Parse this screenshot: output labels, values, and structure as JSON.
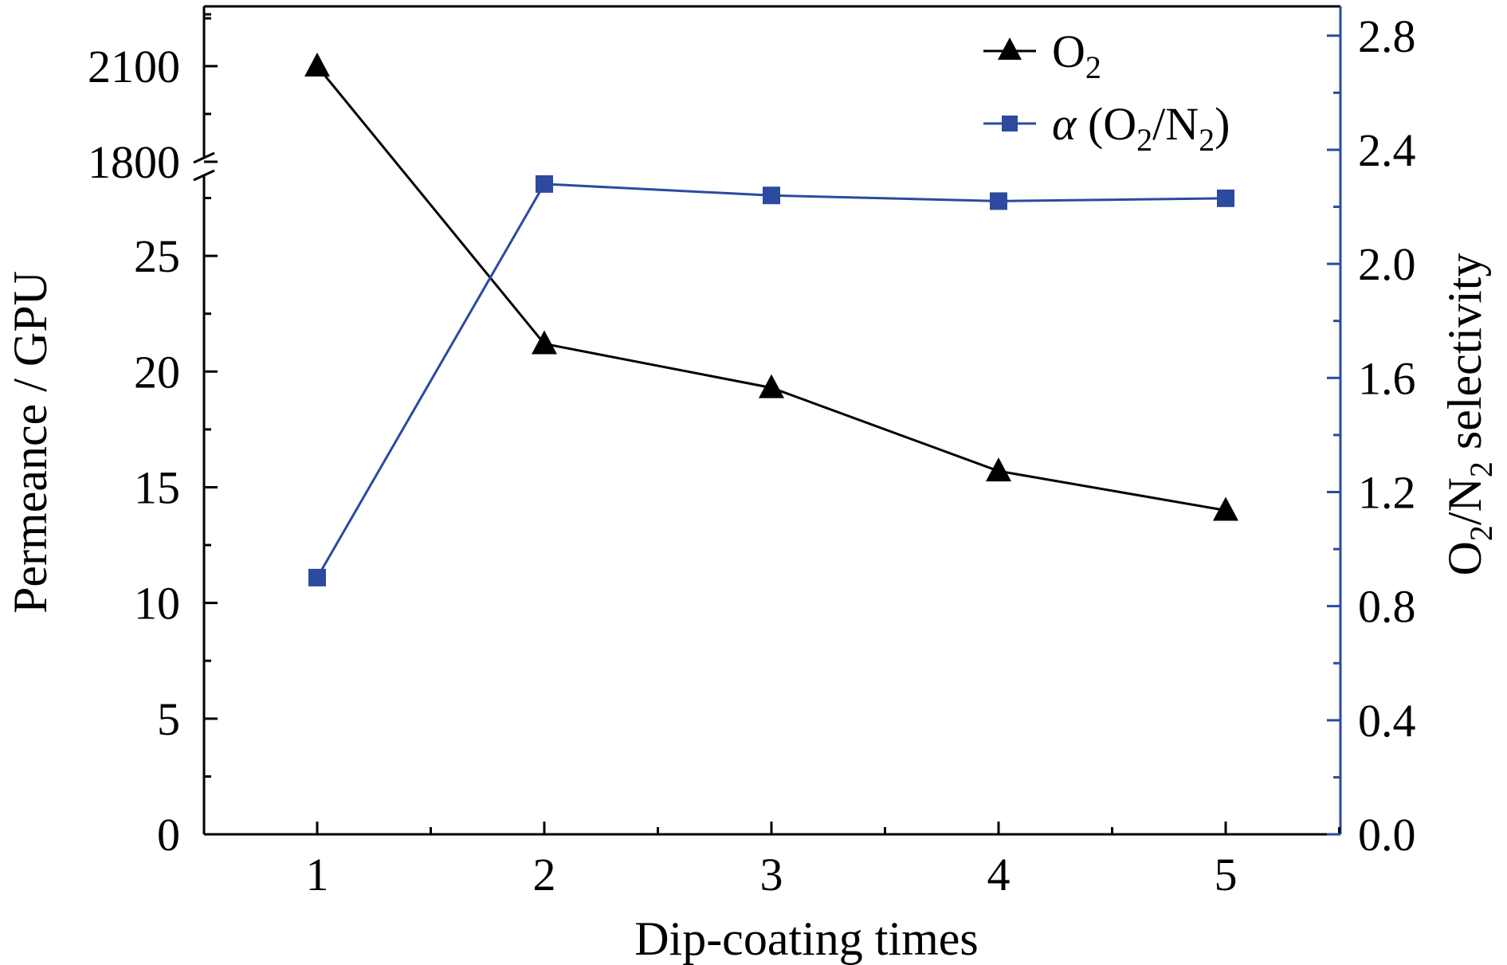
{
  "chart_data": {
    "type": "line",
    "xlabel": "Dip-coating times",
    "ylabel_left": "Permeance / GPU",
    "ylabel_right": "O2/N2 selectivity",
    "x_ticks": [
      "1",
      "2",
      "3",
      "4",
      "5"
    ],
    "y_left_ticks_lower": [
      "0",
      "5",
      "10",
      "15",
      "20",
      "25"
    ],
    "y_left_ticks_upper": [
      "1800",
      "2100"
    ],
    "y_left_lower_range": [
      0,
      28
    ],
    "y_left_upper_range": [
      1800,
      2170
    ],
    "y_left_axis_break": true,
    "y_right_ticks": [
      "0.0",
      "0.4",
      "0.8",
      "1.2",
      "1.6",
      "2.0",
      "2.4",
      "2.8"
    ],
    "y_right_range": [
      0,
      2.9
    ],
    "legend_position": "top-right",
    "series": [
      {
        "name": "O2",
        "legend_label": "O",
        "legend_sub": "2",
        "axis": "left",
        "marker": "triangle",
        "color": "#000000",
        "x": [
          1,
          2,
          3,
          4,
          5
        ],
        "values": [
          2100,
          21.2,
          19.3,
          15.7,
          14.0
        ]
      },
      {
        "name": "α (O2/N2)",
        "legend_label": "α (O",
        "legend_mid": "/N",
        "legend_sub": "2",
        "legend_end": ")",
        "axis": "right",
        "marker": "square",
        "color": "#2b4aa0",
        "x": [
          1,
          2,
          3,
          4,
          5
        ],
        "values": [
          0.9,
          2.28,
          2.24,
          2.22,
          2.23
        ]
      }
    ]
  }
}
